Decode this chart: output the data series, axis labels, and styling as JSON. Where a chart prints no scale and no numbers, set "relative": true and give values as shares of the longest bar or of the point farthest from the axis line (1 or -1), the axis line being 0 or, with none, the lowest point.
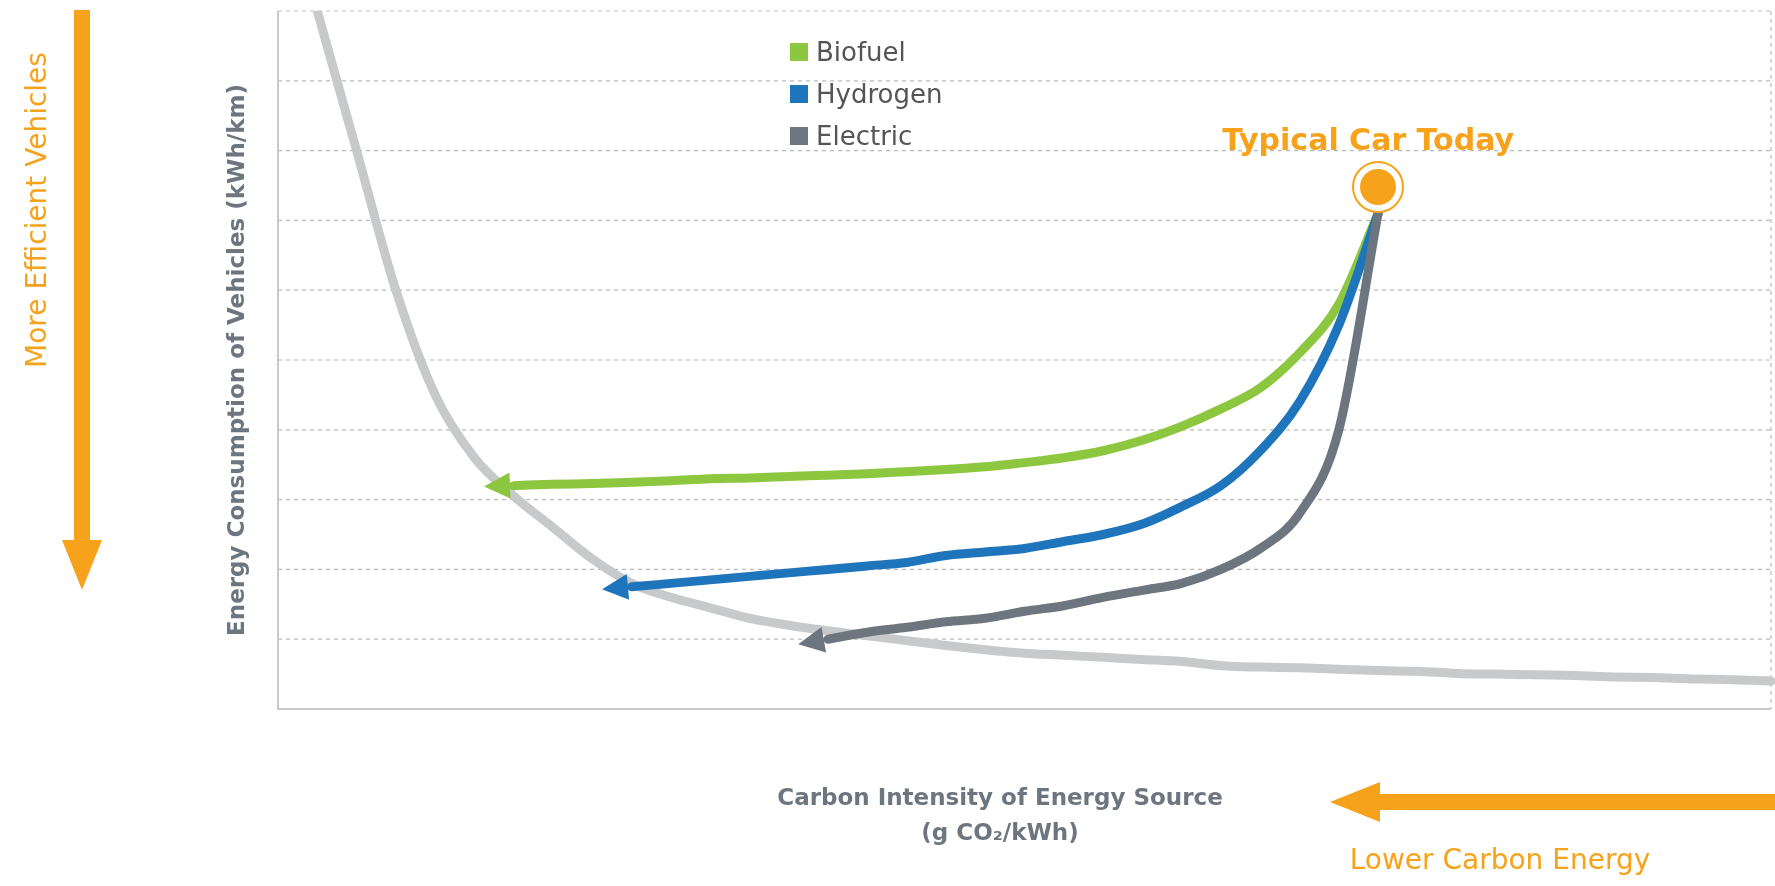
{
  "chart_data": {
    "type": "line",
    "relative": true,
    "xlabel": "Carbon Intensity of Energy Source\n(g CO₂/kWh)",
    "ylabel": "Energy Consumption of Vehicles (kWh/km)",
    "legend": "top",
    "grid": "y",
    "marker": "none",
    "line_style": "solid",
    "annotations": [
      "Typical Car Today",
      "More Efficient Vehicles",
      "Lower Carbon Energy"
    ],
    "categories": [
      null,
      null,
      null,
      null,
      null,
      null,
      null,
      null,
      null,
      null,
      null,
      null,
      null,
      null,
      null,
      null,
      null,
      null,
      null,
      null,
      null,
      null,
      null,
      null,
      null,
      null,
      null,
      null,
      null,
      null,
      null,
      null,
      null,
      null,
      null,
      null,
      null,
      null,
      null
    ],
    "series": [
      {
        "color": "#c8c9cb",
        "values": [
          null,
          1.0,
          0.8,
          0.6,
          0.45,
          0.36,
          0.305,
          0.26,
          0.215,
          0.18,
          0.16,
          0.145,
          0.13,
          0.12,
          0.112,
          0.105,
          0.098,
          0.091,
          0.085,
          0.08,
          0.077,
          0.074,
          0.071,
          0.068,
          0.062,
          0.06,
          0.059,
          0.057,
          0.055,
          0.054,
          0.051,
          0.05,
          0.049,
          0.048,
          0.046,
          0.045,
          0.043,
          0.042,
          0.04
        ]
      },
      {
        "name": "Biofuel",
        "color": "#8dc63f",
        "values": [
          null,
          null,
          null,
          null,
          null,
          null,
          0.32,
          0.322,
          0.323,
          0.325,
          0.327,
          0.33,
          0.331,
          0.333,
          0.335,
          0.337,
          0.34,
          0.343,
          0.347,
          0.353,
          0.36,
          0.37,
          0.385,
          0.405,
          0.43,
          0.46,
          0.51,
          0.58,
          0.71,
          null,
          null,
          null,
          null,
          null,
          null,
          null,
          null,
          null,
          null
        ]
      },
      {
        "name": "Hydrogen",
        "color": "#1f75bc",
        "values": [
          null,
          null,
          null,
          null,
          null,
          null,
          null,
          null,
          null,
          0.175,
          0.18,
          0.185,
          0.19,
          0.195,
          0.2,
          0.205,
          0.21,
          0.22,
          0.225,
          0.23,
          0.24,
          0.25,
          0.265,
          0.29,
          0.32,
          0.37,
          0.44,
          0.55,
          0.71,
          null,
          null,
          null,
          null,
          null,
          null,
          null,
          null,
          null,
          null
        ]
      },
      {
        "name": "Electric",
        "color": "#6d767e",
        "values": [
          null,
          null,
          null,
          null,
          null,
          null,
          null,
          null,
          null,
          null,
          null,
          null,
          null,
          null,
          0.1,
          0.11,
          0.117,
          0.125,
          0.13,
          0.14,
          0.148,
          0.16,
          0.17,
          0.18,
          0.2,
          0.23,
          0.28,
          0.4,
          0.71,
          null,
          null,
          null,
          null,
          null,
          null,
          null,
          null,
          null,
          null
        ]
      }
    ]
  }
}
